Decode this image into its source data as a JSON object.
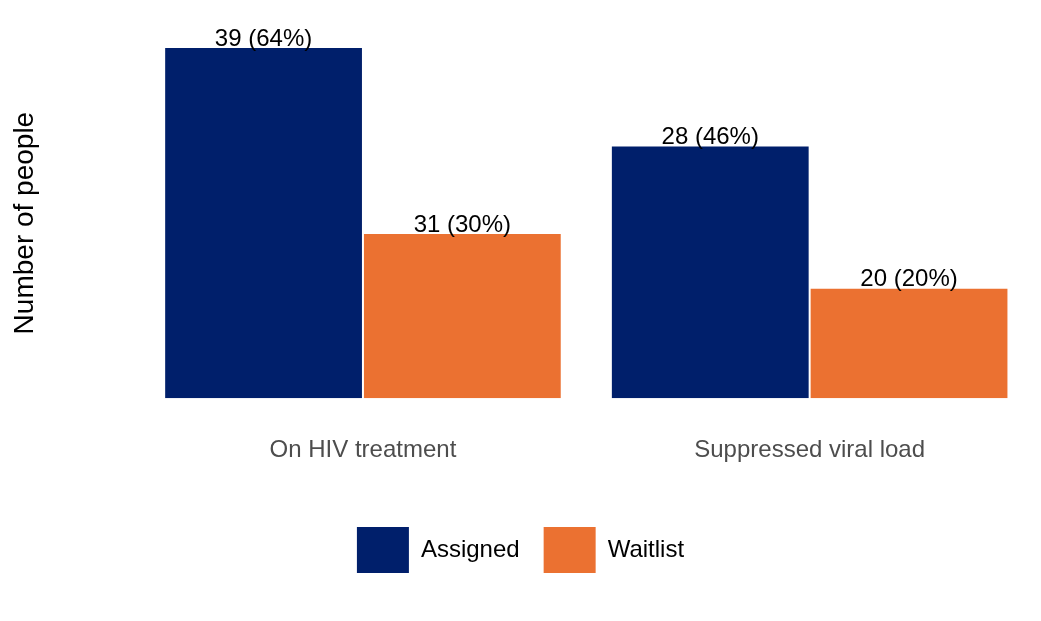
{
  "chart_data": {
    "type": "bar",
    "ylabel": "Number of people",
    "categories": [
      "On HIV treatment",
      "Suppressed viral load"
    ],
    "series": [
      {
        "name": "Assigned",
        "color": "#001f6b",
        "values": [
          64,
          46
        ],
        "value_labels": [
          "39 (64%)",
          "28 (46%)"
        ]
      },
      {
        "name": "Waitlist",
        "color": "#eb7131",
        "values": [
          30,
          20
        ],
        "value_labels": [
          "31 (30%)",
          "20 (20%)"
        ]
      }
    ],
    "ylim": [
      0,
      64
    ],
    "grid": false,
    "legend": "bottom"
  }
}
